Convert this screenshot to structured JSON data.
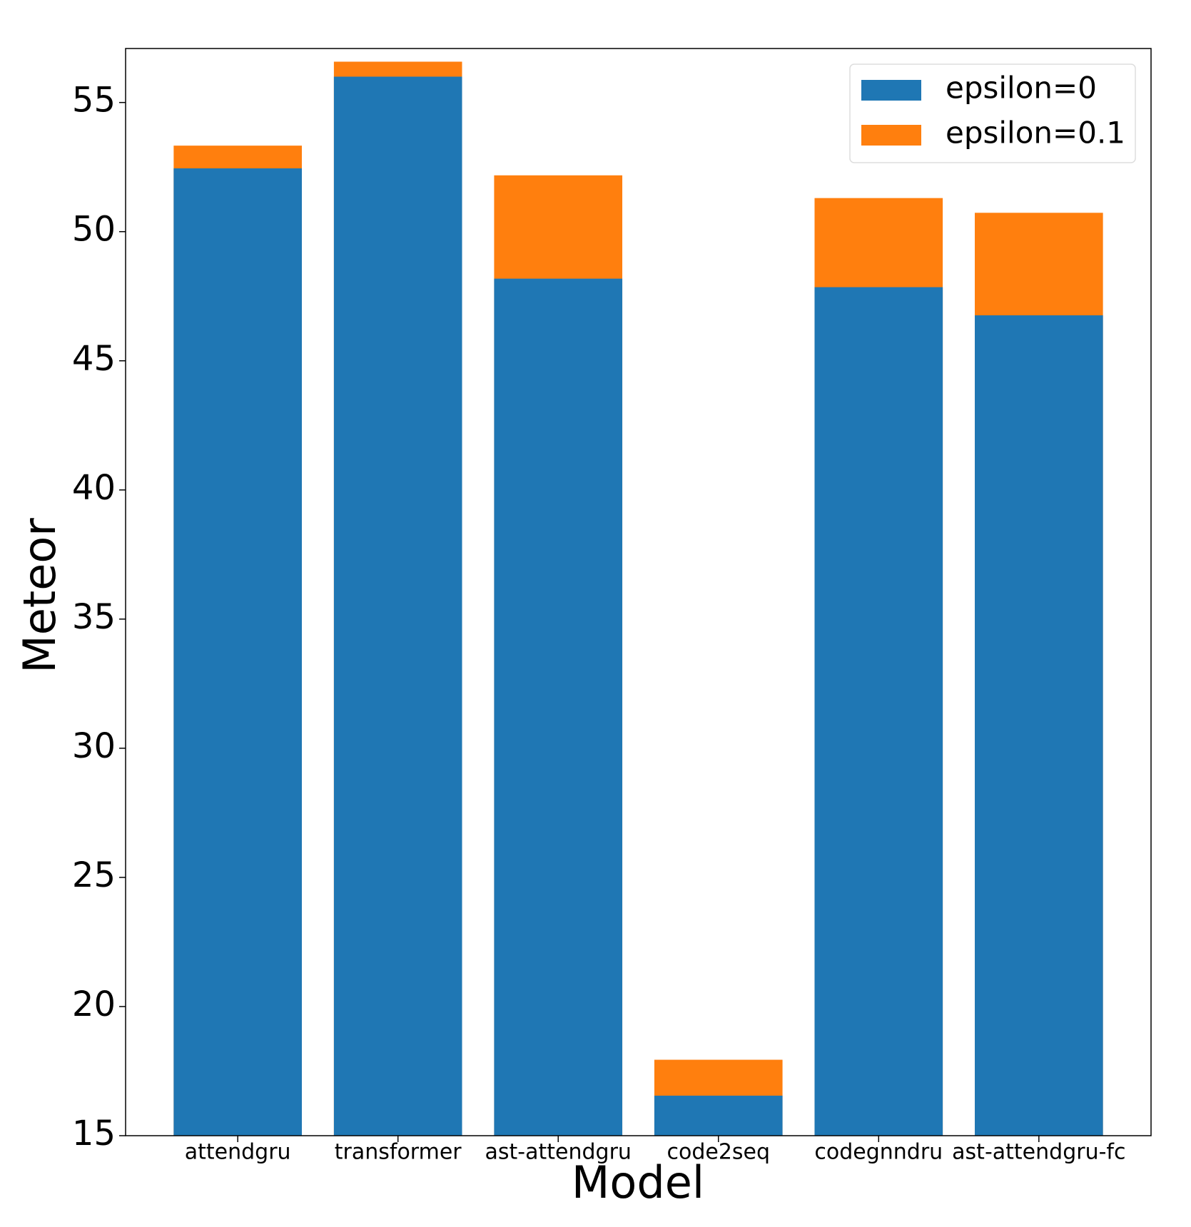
{
  "chart_data": {
    "type": "bar",
    "x_label": "Model",
    "y_label": "Meteor",
    "categories": [
      "attendgru",
      "transformer",
      "ast-attendgru",
      "code2seq",
      "codegnndru",
      "ast-attendgru-fc"
    ],
    "series": [
      {
        "name": "epsilon=0",
        "color": "#1f77b4",
        "values": [
          52.45,
          56.0,
          48.18,
          16.55,
          47.85,
          46.76
        ]
      },
      {
        "name": "epsilon=0.1",
        "color": "#ff7f0e",
        "values": [
          53.33,
          56.58,
          52.18,
          17.94,
          51.3,
          50.73
        ]
      }
    ],
    "ylim": [
      15,
      57.09
    ],
    "yticks": [
      15,
      20,
      25,
      30,
      35,
      40,
      45,
      50,
      55
    ],
    "legend": "upper right"
  }
}
